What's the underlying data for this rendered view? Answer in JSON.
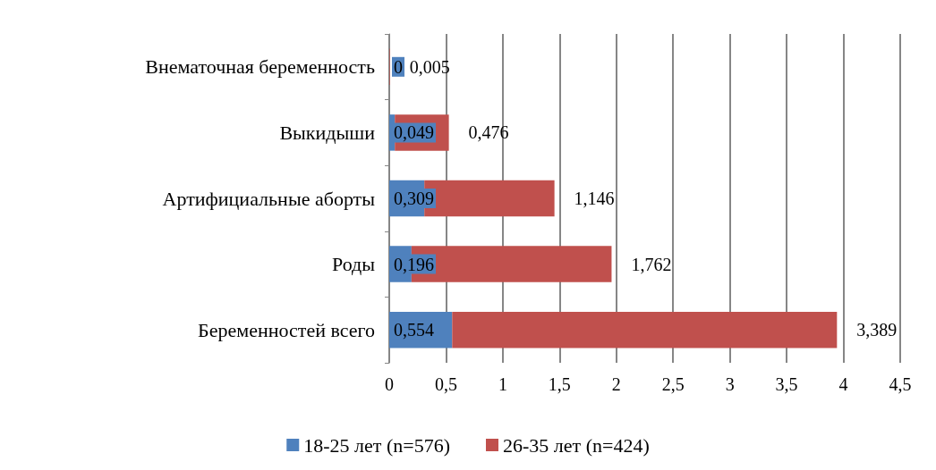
{
  "chart_data": {
    "type": "bar",
    "orientation": "horizontal",
    "stacked": true,
    "categories": [
      "Внематочная беременность",
      "Выкидыши",
      "Артифициальные аборты",
      "Роды",
      "Беременностей всего"
    ],
    "series": [
      {
        "name": "18-25 лет (n=576)",
        "color": "#4f81bd",
        "values": [
          0,
          0.049,
          0.309,
          0.196,
          0.554
        ],
        "value_labels": [
          "0",
          "0,049",
          "0,309",
          "0,196",
          "0,554"
        ]
      },
      {
        "name": "26-35 лет (n=424)",
        "color": "#c0504d",
        "values": [
          0.005,
          0.476,
          1.146,
          1.762,
          3.389
        ],
        "value_labels": [
          "0,005",
          "0,476",
          "1,146",
          "1,762",
          "3,389"
        ]
      }
    ],
    "xlim": [
      0,
      4.5
    ],
    "xticks": [
      0,
      {
        "value": 0.5,
        "label": "0,5"
      },
      1,
      {
        "value": 1.5,
        "label": "1,5"
      },
      2,
      {
        "value": 2.5,
        "label": "2,5"
      },
      3,
      {
        "value": 3.5,
        "label": "3,5"
      },
      4,
      {
        "value": 4.5,
        "label": "4,5"
      }
    ],
    "grid": "x",
    "legend": "bottom"
  }
}
